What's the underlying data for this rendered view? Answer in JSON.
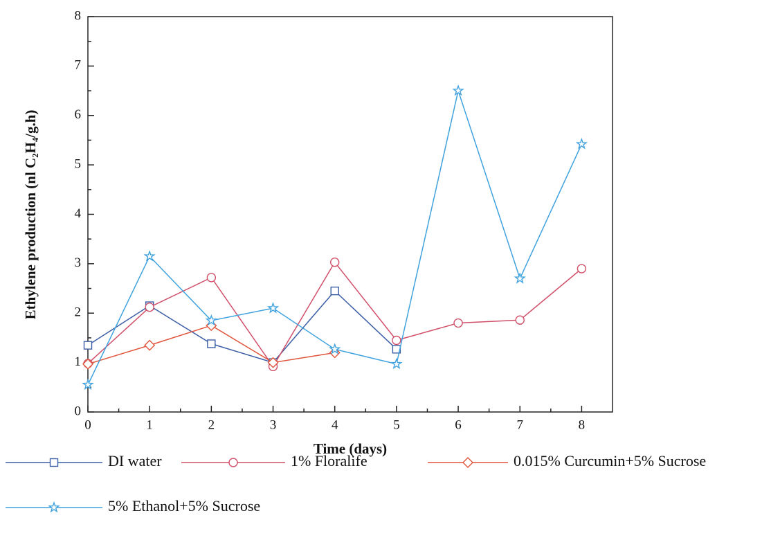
{
  "chart_data": {
    "type": "line",
    "x_label": "Time (days)",
    "y_label": "Ethylene production (nl C₂H₄/g.h)",
    "x": [
      0,
      1,
      2,
      3,
      4,
      5,
      6,
      7,
      8
    ],
    "series": [
      {
        "name": "DI water",
        "color": "#3b5ea6",
        "marker": "square",
        "values": [
          1.35,
          2.15,
          1.38,
          1.0,
          2.45,
          1.27,
          null,
          null,
          null
        ]
      },
      {
        "name": "1% Floralife",
        "color": "#d0506a",
        "marker": "circle",
        "values": [
          0.98,
          2.12,
          2.72,
          0.92,
          3.03,
          1.45,
          1.8,
          1.86,
          2.9
        ]
      },
      {
        "name": "0.015% Curcumin+5% Sucrose",
        "color": "#e0553c",
        "marker": "diamond",
        "values": [
          0.97,
          1.35,
          1.75,
          1.0,
          1.2,
          null,
          null,
          null,
          null
        ]
      },
      {
        "name": "5% Ethanol+5% Sucrose",
        "color": "#3fa2de",
        "marker": "star",
        "values": [
          0.55,
          3.15,
          1.85,
          2.1,
          1.27,
          0.97,
          6.5,
          2.7,
          5.42
        ]
      }
    ],
    "xlim": [
      0,
      8.5
    ],
    "xticks": [
      0,
      1,
      2,
      3,
      4,
      5,
      6,
      7,
      8
    ],
    "ylim": [
      0,
      8
    ],
    "yticks": [
      0,
      1,
      2,
      3,
      4,
      5,
      6,
      7,
      8
    ]
  }
}
